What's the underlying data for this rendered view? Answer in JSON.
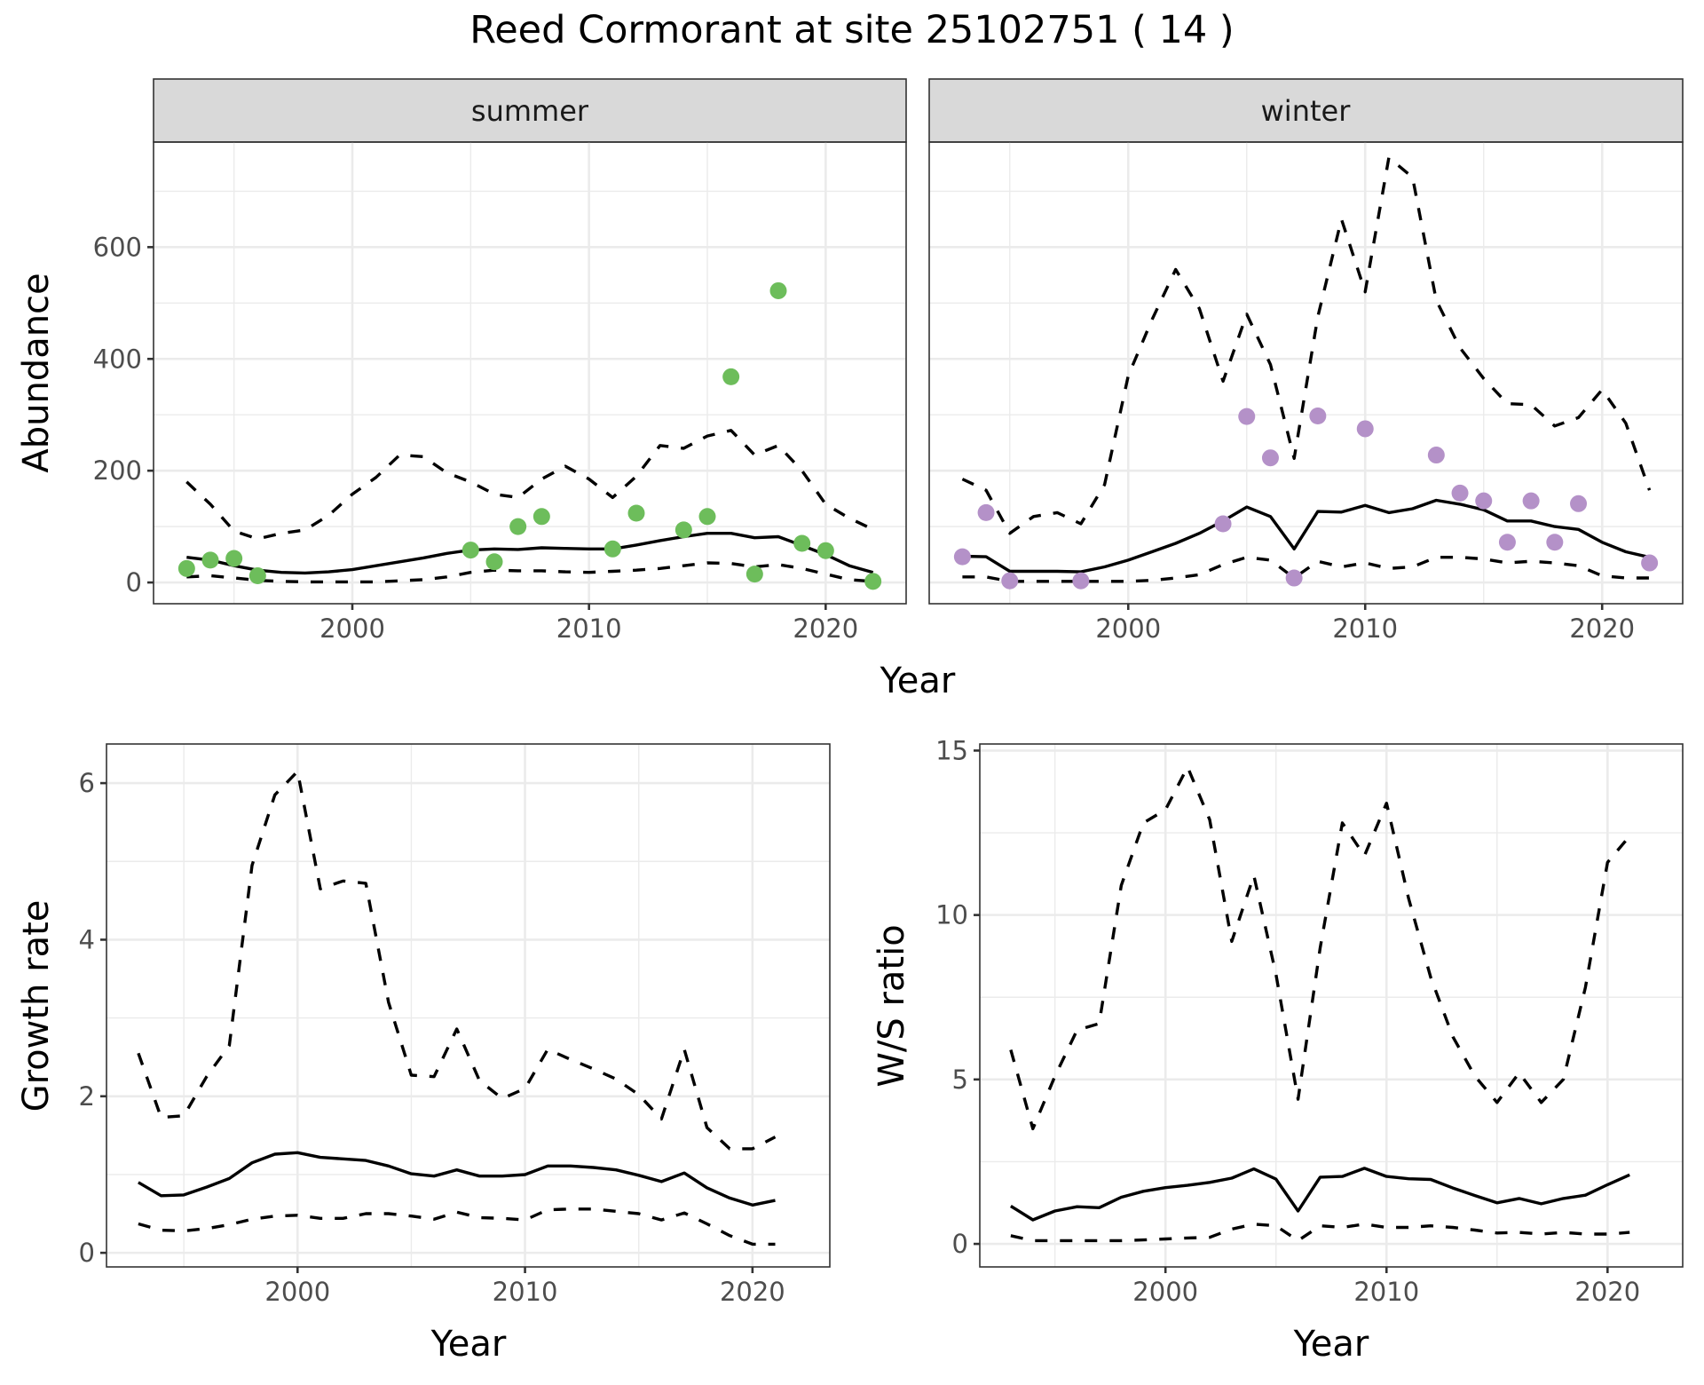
{
  "title": "Reed Cormorant at site 25102751 ( 14 )",
  "colors": {
    "summer_points": "#6dbd5b",
    "winter_points": "#b491c8",
    "lines": "#000000",
    "strip_fill": "#d9d9d9",
    "grid": "#ebebeb"
  },
  "chart_data": [
    {
      "id": "abundance",
      "type": "scatter+line",
      "facets": [
        "summer",
        "winter"
      ],
      "xlabel": "Year",
      "ylabel": "Abundance",
      "xlim": [
        1991.6,
        2023.4
      ],
      "ylim": [
        -38,
        788
      ],
      "xticks": [
        2000,
        2010,
        2020
      ],
      "xtick_labels": [
        "2000",
        "2010",
        "2020"
      ],
      "yticks": [
        0,
        200,
        400,
        600
      ],
      "ytick_labels": [
        "0",
        "200",
        "400",
        "600"
      ],
      "grid": true,
      "legend": "none",
      "panels": [
        {
          "name": "summer",
          "label": "summer",
          "points": {
            "x": [
              1993,
              1994,
              1995,
              1996,
              2005,
              2006,
              2007,
              2008,
              2011,
              2012,
              2014,
              2015,
              2016,
              2017,
              2018,
              2019,
              2020,
              2022
            ],
            "y": [
              25,
              40,
              43,
              12,
              58,
              37,
              100,
              118,
              60,
              124,
              94,
              118,
              368,
              15,
              522,
              70,
              57,
              2
            ]
          },
          "x": [
            1993,
            1994,
            1995,
            1996,
            1997,
            1998,
            1999,
            2000,
            2001,
            2002,
            2003,
            2004,
            2005,
            2006,
            2007,
            2008,
            2009,
            2010,
            2011,
            2012,
            2013,
            2014,
            2015,
            2016,
            2017,
            2018,
            2019,
            2020,
            2021,
            2022
          ],
          "series": [
            {
              "name": "mean",
              "style": "solid",
              "values": [
                45,
                40,
                30,
                22,
                18,
                17,
                19,
                23,
                30,
                37,
                44,
                52,
                58,
                60,
                59,
                62,
                61,
                60,
                60,
                67,
                75,
                82,
                88,
                88,
                80,
                82,
                66,
                50,
                30,
                18
              ]
            },
            {
              "name": "upper",
              "style": "dashed",
              "values": [
                180,
                140,
                92,
                78,
                88,
                94,
                120,
                158,
                188,
                228,
                225,
                196,
                180,
                158,
                152,
                185,
                208,
                185,
                152,
                190,
                245,
                240,
                262,
                272,
                228,
                245,
                200,
                140,
                115,
                95
              ]
            },
            {
              "name": "lower",
              "style": "dashed",
              "values": [
                10,
                12,
                8,
                4,
                2,
                1,
                1,
                1,
                1,
                3,
                5,
                10,
                18,
                22,
                21,
                21,
                19,
                18,
                20,
                22,
                25,
                30,
                35,
                34,
                28,
                32,
                25,
                15,
                5,
                2
              ]
            }
          ]
        },
        {
          "name": "winter",
          "label": "winter",
          "points": {
            "x": [
              1993,
              1994,
              1995,
              1998,
              2004,
              2005,
              2006,
              2007,
              2008,
              2010,
              2013,
              2014,
              2015,
              2016,
              2017,
              2018,
              2019,
              2022
            ],
            "y": [
              46,
              125,
              3,
              3,
              105,
              297,
              223,
              8,
              298,
              275,
              228,
              160,
              146,
              72,
              146,
              72,
              141,
              35
            ]
          },
          "x": [
            1993,
            1994,
            1995,
            1996,
            1997,
            1998,
            1999,
            2000,
            2001,
            2002,
            2003,
            2004,
            2005,
            2006,
            2007,
            2008,
            2009,
            2010,
            2011,
            2012,
            2013,
            2014,
            2015,
            2016,
            2017,
            2018,
            2019,
            2020,
            2021,
            2022
          ],
          "series": [
            {
              "name": "mean",
              "style": "solid",
              "values": [
                47,
                46,
                20,
                20,
                20,
                19,
                28,
                40,
                55,
                70,
                88,
                110,
                135,
                118,
                60,
                127,
                126,
                138,
                125,
                132,
                147,
                140,
                130,
                110,
                110,
                100,
                95,
                72,
                55,
                45
              ]
            },
            {
              "name": "upper",
              "style": "dashed",
              "values": [
                185,
                165,
                88,
                118,
                125,
                105,
                175,
                370,
                470,
                560,
                490,
                360,
                480,
                390,
                222,
                475,
                650,
                520,
                760,
                725,
                505,
                420,
                365,
                320,
                318,
                280,
                295,
                345,
                285,
                165
              ]
            },
            {
              "name": "lower",
              "style": "dashed",
              "values": [
                10,
                10,
                2,
                2,
                2,
                2,
                2,
                2,
                4,
                8,
                14,
                32,
                45,
                40,
                8,
                38,
                28,
                35,
                25,
                28,
                45,
                45,
                42,
                35,
                38,
                35,
                30,
                12,
                8,
                8
              ]
            }
          ]
        }
      ]
    },
    {
      "id": "growth",
      "type": "line",
      "xlabel": "Year",
      "ylabel": "Growth rate",
      "xlim": [
        1991.6,
        2023.4
      ],
      "ylim": [
        -0.18,
        6.5
      ],
      "xticks": [
        2000,
        2010,
        2020
      ],
      "xtick_labels": [
        "2000",
        "2010",
        "2020"
      ],
      "yticks": [
        0,
        2,
        4,
        6
      ],
      "ytick_labels": [
        "0",
        "2",
        "4",
        "6"
      ],
      "grid": true,
      "legend": "none",
      "x": [
        1993,
        1994,
        1995,
        1996,
        1997,
        1998,
        1999,
        2000,
        2001,
        2002,
        2003,
        2004,
        2005,
        2006,
        2007,
        2008,
        2009,
        2010,
        2011,
        2012,
        2013,
        2014,
        2015,
        2016,
        2017,
        2018,
        2019,
        2020,
        2021
      ],
      "series": [
        {
          "name": "mean",
          "style": "solid",
          "values": [
            0.9,
            0.73,
            0.74,
            0.84,
            0.95,
            1.15,
            1.26,
            1.28,
            1.22,
            1.2,
            1.18,
            1.11,
            1.01,
            0.98,
            1.06,
            0.98,
            0.98,
            1.0,
            1.11,
            1.11,
            1.09,
            1.06,
            0.99,
            0.91,
            1.02,
            0.83,
            0.7,
            0.61,
            0.67
          ]
        },
        {
          "name": "upper",
          "style": "dashed",
          "values": [
            2.55,
            1.73,
            1.75,
            2.25,
            2.65,
            4.95,
            5.85,
            6.15,
            4.65,
            4.75,
            4.72,
            3.2,
            2.27,
            2.25,
            2.86,
            2.2,
            1.97,
            2.1,
            2.6,
            2.47,
            2.35,
            2.22,
            2.02,
            1.71,
            2.6,
            1.6,
            1.33,
            1.33,
            1.48
          ]
        },
        {
          "name": "lower",
          "style": "dashed",
          "values": [
            0.37,
            0.29,
            0.28,
            0.31,
            0.36,
            0.43,
            0.47,
            0.48,
            0.44,
            0.44,
            0.5,
            0.5,
            0.47,
            0.43,
            0.52,
            0.45,
            0.44,
            0.42,
            0.55,
            0.56,
            0.56,
            0.53,
            0.5,
            0.42,
            0.51,
            0.37,
            0.22,
            0.11,
            0.11
          ]
        }
      ]
    },
    {
      "id": "ws_ratio",
      "type": "line",
      "xlabel": "Year",
      "ylabel": "W/S ratio",
      "xlim": [
        1991.6,
        2023.4
      ],
      "ylim": [
        -0.7,
        15.2
      ],
      "xticks": [
        2000,
        2010,
        2020
      ],
      "xtick_labels": [
        "2000",
        "2010",
        "2020"
      ],
      "yticks": [
        0,
        5,
        10,
        15
      ],
      "ytick_labels": [
        "0",
        "5",
        "10",
        "15"
      ],
      "grid": true,
      "legend": "none",
      "x": [
        1993,
        1994,
        1995,
        1996,
        1997,
        1998,
        1999,
        2000,
        2001,
        2002,
        2003,
        2004,
        2005,
        2006,
        2007,
        2008,
        2009,
        2010,
        2011,
        2012,
        2013,
        2014,
        2015,
        2016,
        2017,
        2018,
        2019,
        2020,
        2021
      ],
      "series": [
        {
          "name": "mean",
          "style": "solid",
          "values": [
            1.15,
            0.73,
            1.0,
            1.13,
            1.1,
            1.42,
            1.6,
            1.71,
            1.78,
            1.87,
            2.0,
            2.28,
            1.97,
            1.0,
            2.03,
            2.05,
            2.3,
            2.05,
            1.98,
            1.96,
            1.7,
            1.47,
            1.25,
            1.38,
            1.22,
            1.38,
            1.48,
            1.8,
            2.1
          ]
        },
        {
          "name": "upper",
          "style": "dashed",
          "values": [
            5.9,
            3.5,
            5.1,
            6.5,
            6.7,
            10.9,
            12.8,
            13.2,
            14.5,
            12.9,
            9.2,
            11.2,
            8.2,
            4.4,
            9.0,
            12.8,
            11.8,
            13.4,
            10.5,
            8.1,
            6.3,
            5.1,
            4.3,
            5.2,
            4.3,
            5.0,
            7.8,
            11.6,
            12.4
          ]
        },
        {
          "name": "lower",
          "style": "dashed",
          "values": [
            0.25,
            0.1,
            0.1,
            0.1,
            0.1,
            0.1,
            0.12,
            0.15,
            0.18,
            0.2,
            0.45,
            0.6,
            0.55,
            0.1,
            0.55,
            0.5,
            0.6,
            0.5,
            0.5,
            0.55,
            0.5,
            0.42,
            0.33,
            0.35,
            0.3,
            0.35,
            0.3,
            0.3,
            0.35
          ]
        }
      ]
    }
  ]
}
